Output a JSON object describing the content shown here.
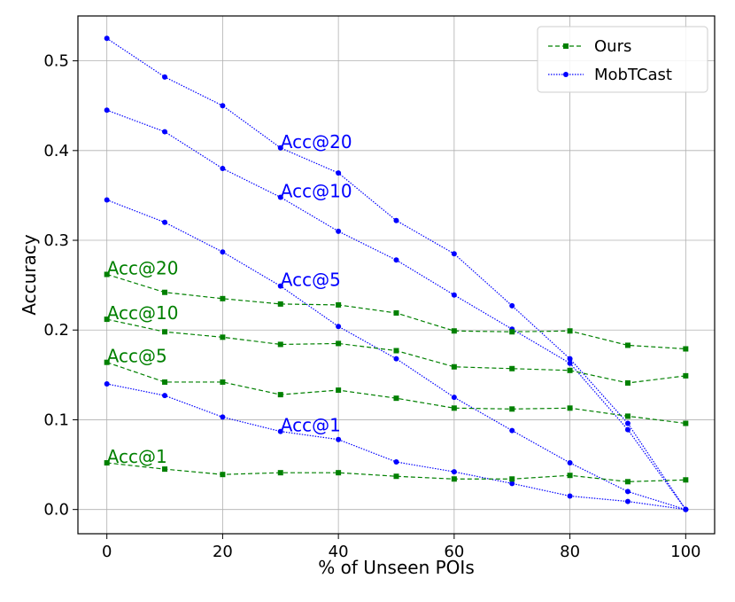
{
  "chart_data": {
    "type": "line",
    "title": "",
    "xlabel": "% of Unseen POIs",
    "ylabel": "Accuracy",
    "xlim": [
      -5,
      105
    ],
    "ylim": [
      -0.027,
      0.55
    ],
    "xticks": [
      0,
      20,
      40,
      60,
      80,
      100
    ],
    "yticks": [
      0.0,
      0.1,
      0.2,
      0.3,
      0.4,
      0.5
    ],
    "xtick_labels": [
      "0",
      "20",
      "40",
      "60",
      "80",
      "100"
    ],
    "ytick_labels": [
      "0.0",
      "0.1",
      "0.2",
      "0.3",
      "0.4",
      "0.5"
    ],
    "grid": true,
    "legend_position": "top-right",
    "x": [
      0,
      10,
      20,
      30,
      40,
      50,
      60,
      70,
      80,
      90,
      100
    ],
    "colors": {
      "ours": "#008000",
      "mobtcast": "#0000ff"
    },
    "legend": [
      {
        "name": "Ours",
        "color": "#008000",
        "marker": "square",
        "dash": "dashed"
      },
      {
        "name": "MobTCast",
        "color": "#0000ff",
        "marker": "circle",
        "dash": "dotted"
      }
    ],
    "series": [
      {
        "name": "MobTCast Acc@20",
        "group": "MobTCast",
        "color": "#0000ff",
        "marker": "circle",
        "dash": "dotted",
        "values": [
          0.525,
          0.482,
          0.45,
          0.403,
          0.375,
          0.322,
          0.285,
          0.227,
          0.168,
          0.096,
          0.0
        ]
      },
      {
        "name": "MobTCast Acc@10",
        "group": "MobTCast",
        "color": "#0000ff",
        "marker": "circle",
        "dash": "dotted",
        "values": [
          0.445,
          0.421,
          0.38,
          0.348,
          0.31,
          0.278,
          0.239,
          0.201,
          0.163,
          0.089,
          0.0
        ]
      },
      {
        "name": "MobTCast Acc@5",
        "group": "MobTCast",
        "color": "#0000ff",
        "marker": "circle",
        "dash": "dotted",
        "values": [
          0.345,
          0.32,
          0.287,
          0.249,
          0.204,
          0.168,
          0.125,
          0.088,
          0.052,
          0.02,
          0.0
        ]
      },
      {
        "name": "MobTCast Acc@1",
        "group": "MobTCast",
        "color": "#0000ff",
        "marker": "circle",
        "dash": "dotted",
        "values": [
          0.14,
          0.127,
          0.103,
          0.087,
          0.078,
          0.053,
          0.042,
          0.029,
          0.015,
          0.009,
          0.0
        ]
      },
      {
        "name": "Ours Acc@20",
        "group": "Ours",
        "color": "#008000",
        "marker": "square",
        "dash": "dashed",
        "values": [
          0.262,
          0.242,
          0.235,
          0.229,
          0.228,
          0.219,
          0.199,
          0.198,
          0.199,
          0.183,
          0.179
        ]
      },
      {
        "name": "Ours Acc@10",
        "group": "Ours",
        "color": "#008000",
        "marker": "square",
        "dash": "dashed",
        "values": [
          0.212,
          0.198,
          0.192,
          0.184,
          0.185,
          0.177,
          0.159,
          0.157,
          0.155,
          0.141,
          0.149
        ]
      },
      {
        "name": "Ours Acc@5",
        "group": "Ours",
        "color": "#008000",
        "marker": "square",
        "dash": "dashed",
        "values": [
          0.164,
          0.142,
          0.142,
          0.128,
          0.133,
          0.124,
          0.113,
          0.112,
          0.113,
          0.104,
          0.096
        ]
      },
      {
        "name": "Ours Acc@1",
        "group": "Ours",
        "color": "#008000",
        "marker": "square",
        "dash": "dashed",
        "values": [
          0.052,
          0.045,
          0.039,
          0.041,
          0.041,
          0.037,
          0.034,
          0.034,
          0.038,
          0.031,
          0.033
        ]
      }
    ],
    "annotations": [
      {
        "text": "Acc@20",
        "x": 30,
        "y": 0.403,
        "color": "#0000ff"
      },
      {
        "text": "Acc@10",
        "x": 30,
        "y": 0.348,
        "color": "#0000ff"
      },
      {
        "text": "Acc@5",
        "x": 30,
        "y": 0.249,
        "color": "#0000ff"
      },
      {
        "text": "Acc@1",
        "x": 30,
        "y": 0.087,
        "color": "#0000ff"
      },
      {
        "text": "Acc@20",
        "x": 0,
        "y": 0.262,
        "color": "#008000"
      },
      {
        "text": "Acc@10",
        "x": 0,
        "y": 0.212,
        "color": "#008000"
      },
      {
        "text": "Acc@5",
        "x": 0,
        "y": 0.164,
        "color": "#008000"
      },
      {
        "text": "Acc@1",
        "x": 0,
        "y": 0.052,
        "color": "#008000"
      }
    ]
  }
}
